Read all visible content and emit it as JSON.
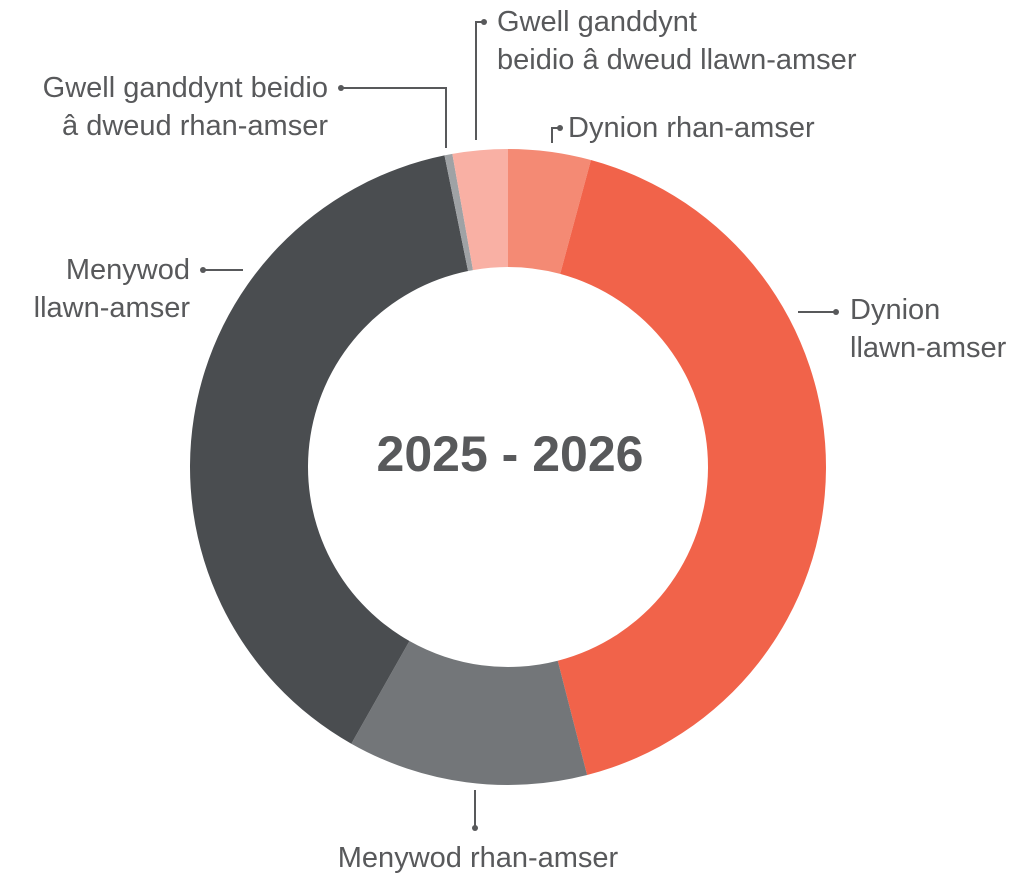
{
  "chart_data": {
    "type": "donut",
    "title": "2025 - 2026",
    "categories": [
      "Dynion rhan-amser",
      "Dynion\nllawn-amser",
      "Menywod rhan-amser",
      "Menywod\nllawn-amser",
      "Gwell ganddynt beidio\nâ dweud rhan-amser",
      "Gwell ganddynt\nbeidio â dweud llawn-amser"
    ],
    "values": [
      4.2,
      41.8,
      12.2,
      38.6,
      0.4,
      2.8
    ],
    "colors": [
      "#f48a74",
      "#f1634a",
      "#737679",
      "#4a4d50",
      "#9fa2a5",
      "#f9b0a4"
    ]
  }
}
